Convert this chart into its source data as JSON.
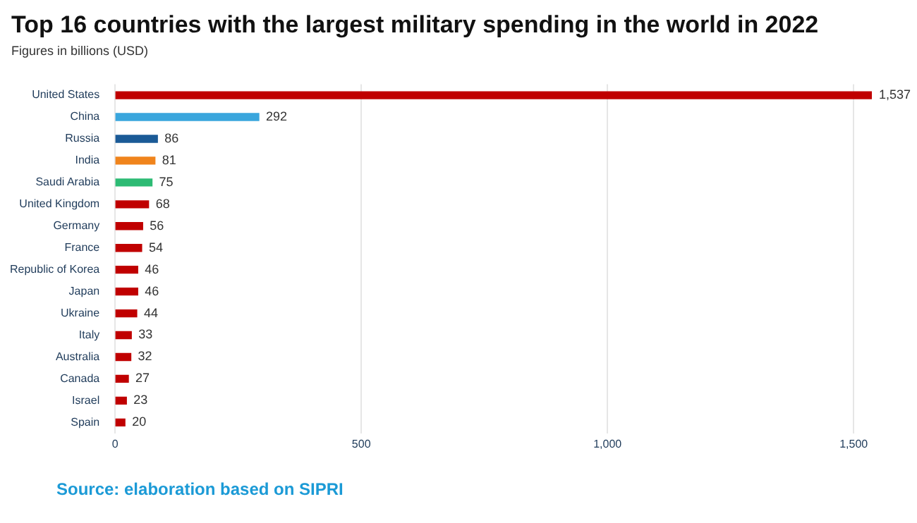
{
  "chart_data": {
    "type": "bar",
    "orientation": "horizontal",
    "title": "Top 16 countries with the largest military spending in the world in 2022",
    "subtitle": "Figures in billions (USD)",
    "categories": [
      "United States",
      "China",
      "Russia",
      "India",
      "Saudi Arabia",
      "United Kingdom",
      "Germany",
      "France",
      "Republic of Korea",
      "Japan",
      "Ukraine",
      "Italy",
      "Australia",
      "Canada",
      "Israel",
      "Spain"
    ],
    "values": [
      1537,
      292,
      86,
      81,
      75,
      68,
      56,
      54,
      46,
      46,
      44,
      33,
      32,
      27,
      23,
      20
    ],
    "value_labels": [
      "1,537",
      "292",
      "86",
      "81",
      "75",
      "68",
      "56",
      "54",
      "46",
      "46",
      "44",
      "33",
      "32",
      "27",
      "23",
      "20"
    ],
    "colors": [
      "#c00000",
      "#3aa6dd",
      "#1a5a96",
      "#f0841c",
      "#2dbb74",
      "#c00000",
      "#c00000",
      "#c00000",
      "#c00000",
      "#c00000",
      "#c00000",
      "#c00000",
      "#c00000",
      "#c00000",
      "#c00000",
      "#c00000"
    ],
    "xlim": [
      0,
      1537
    ],
    "xticks": [
      0,
      500,
      {
        "value": 1000,
        "label": "1,000"
      },
      {
        "value": 1500,
        "label": "1,500"
      }
    ],
    "grid": "x",
    "legend": false,
    "annotations": [
      "Source: elaboration based on SIPRI"
    ]
  }
}
